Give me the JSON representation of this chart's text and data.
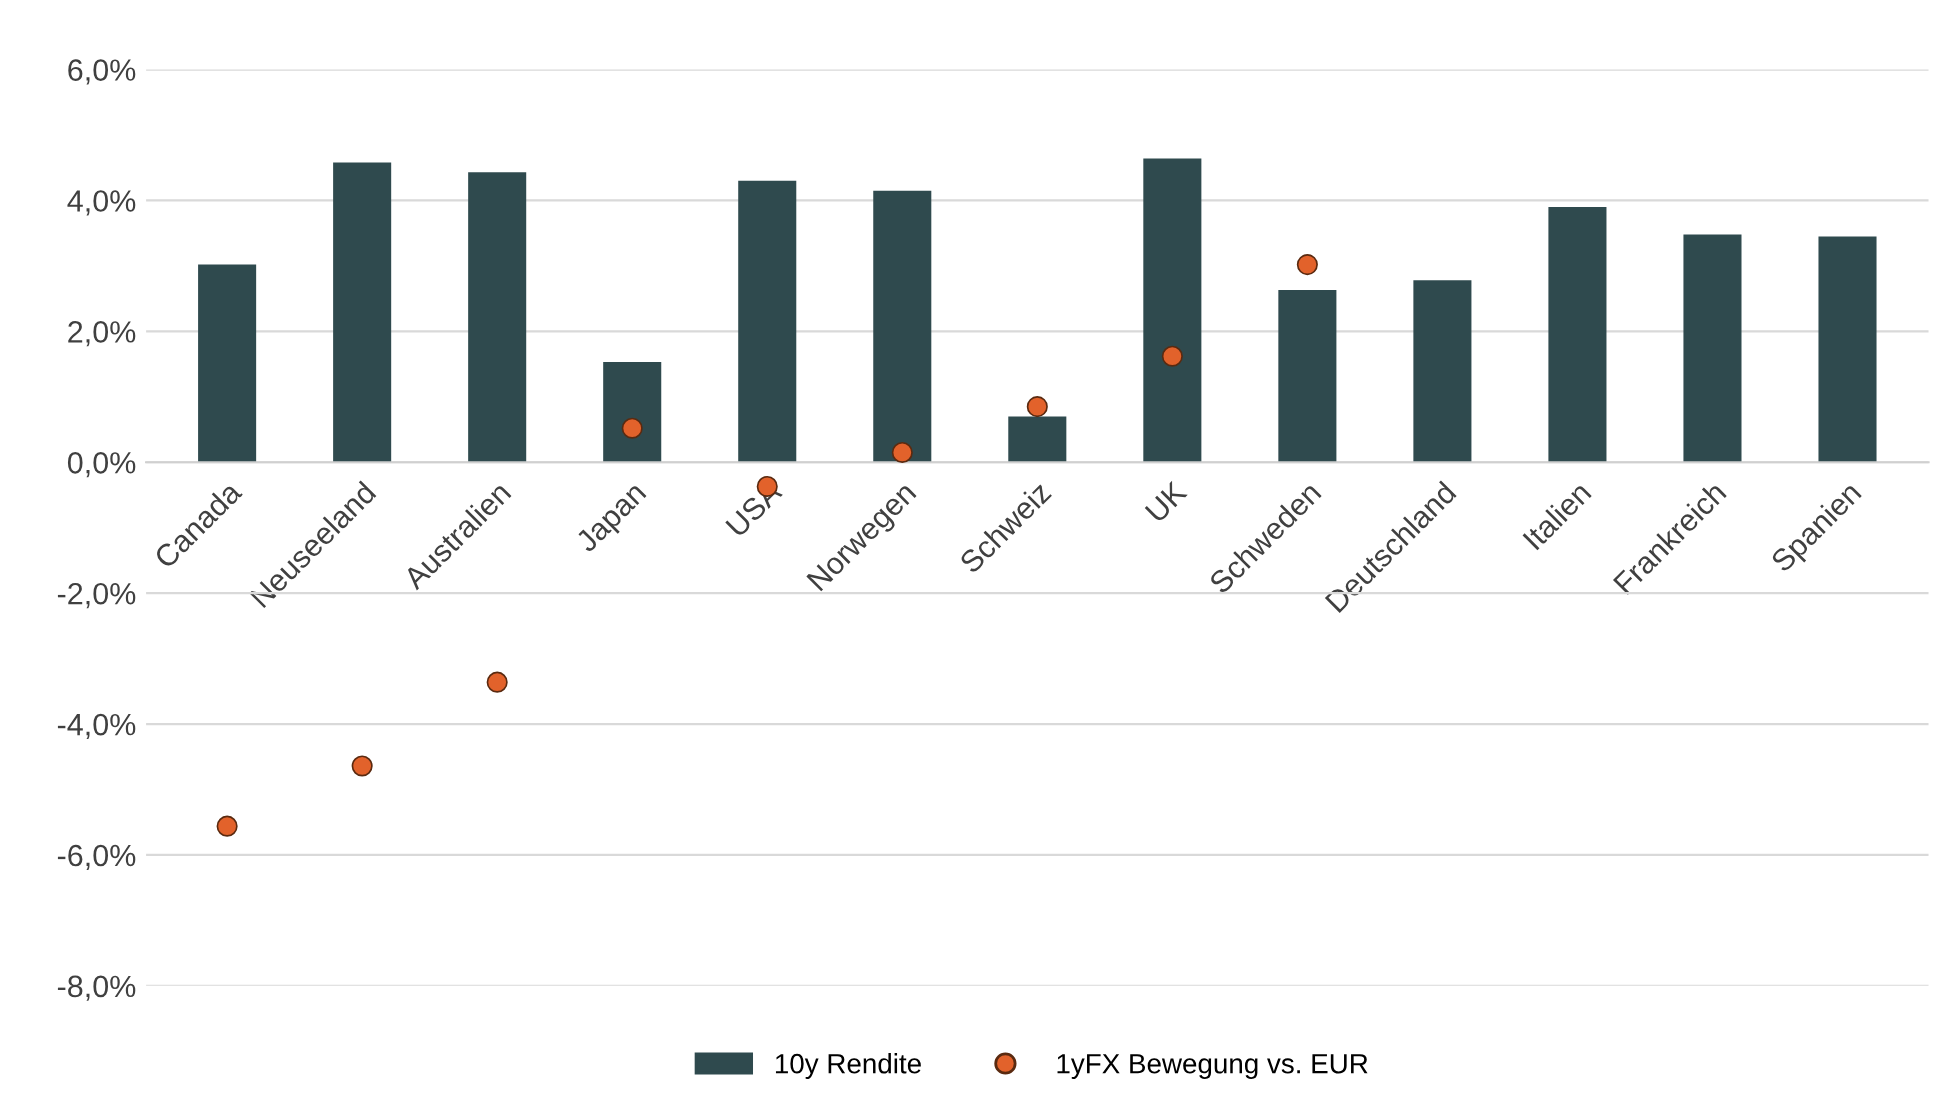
{
  "chart_data": {
    "type": "bar",
    "categories": [
      "Canada",
      "Neuseeland",
      "Australien",
      "Japan",
      "USA",
      "Norwegen",
      "Schweiz",
      "UK",
      "Schweden",
      "Deutschland",
      "Italien",
      "Frankreich",
      "Spanien"
    ],
    "series": [
      {
        "name": "10y Rendite",
        "color": "#2f4a4e",
        "values": [
          3.02,
          4.58,
          4.43,
          1.53,
          4.3,
          4.15,
          0.7,
          4.64,
          2.63,
          2.78,
          3.9,
          3.48,
          3.45
        ]
      },
      {
        "name": "1yFX Bewegung vs. EUR",
        "type": "scatter",
        "color": "#e2622b",
        "marker": "circle",
        "values": [
          -5.56,
          -4.64,
          -3.36,
          0.52,
          -0.37,
          0.15,
          0.85,
          1.62,
          3.02,
          null,
          null,
          null,
          null
        ]
      }
    ],
    "ylim": [
      -8,
      6
    ],
    "yticks": [
      {
        "value": -8,
        "label": "-8,0%"
      },
      {
        "value": -6,
        "label": "-6,0%"
      },
      {
        "value": -4,
        "label": "-4,0%"
      },
      {
        "value": -2,
        "label": "-2,0%"
      },
      {
        "value": 0,
        "label": "0,0%"
      },
      {
        "value": 2,
        "label": "2,0%"
      },
      {
        "value": 4,
        "label": "4,0%"
      },
      {
        "value": 6,
        "label": "6,0%"
      }
    ],
    "grid": "y",
    "legend": "bottom"
  }
}
